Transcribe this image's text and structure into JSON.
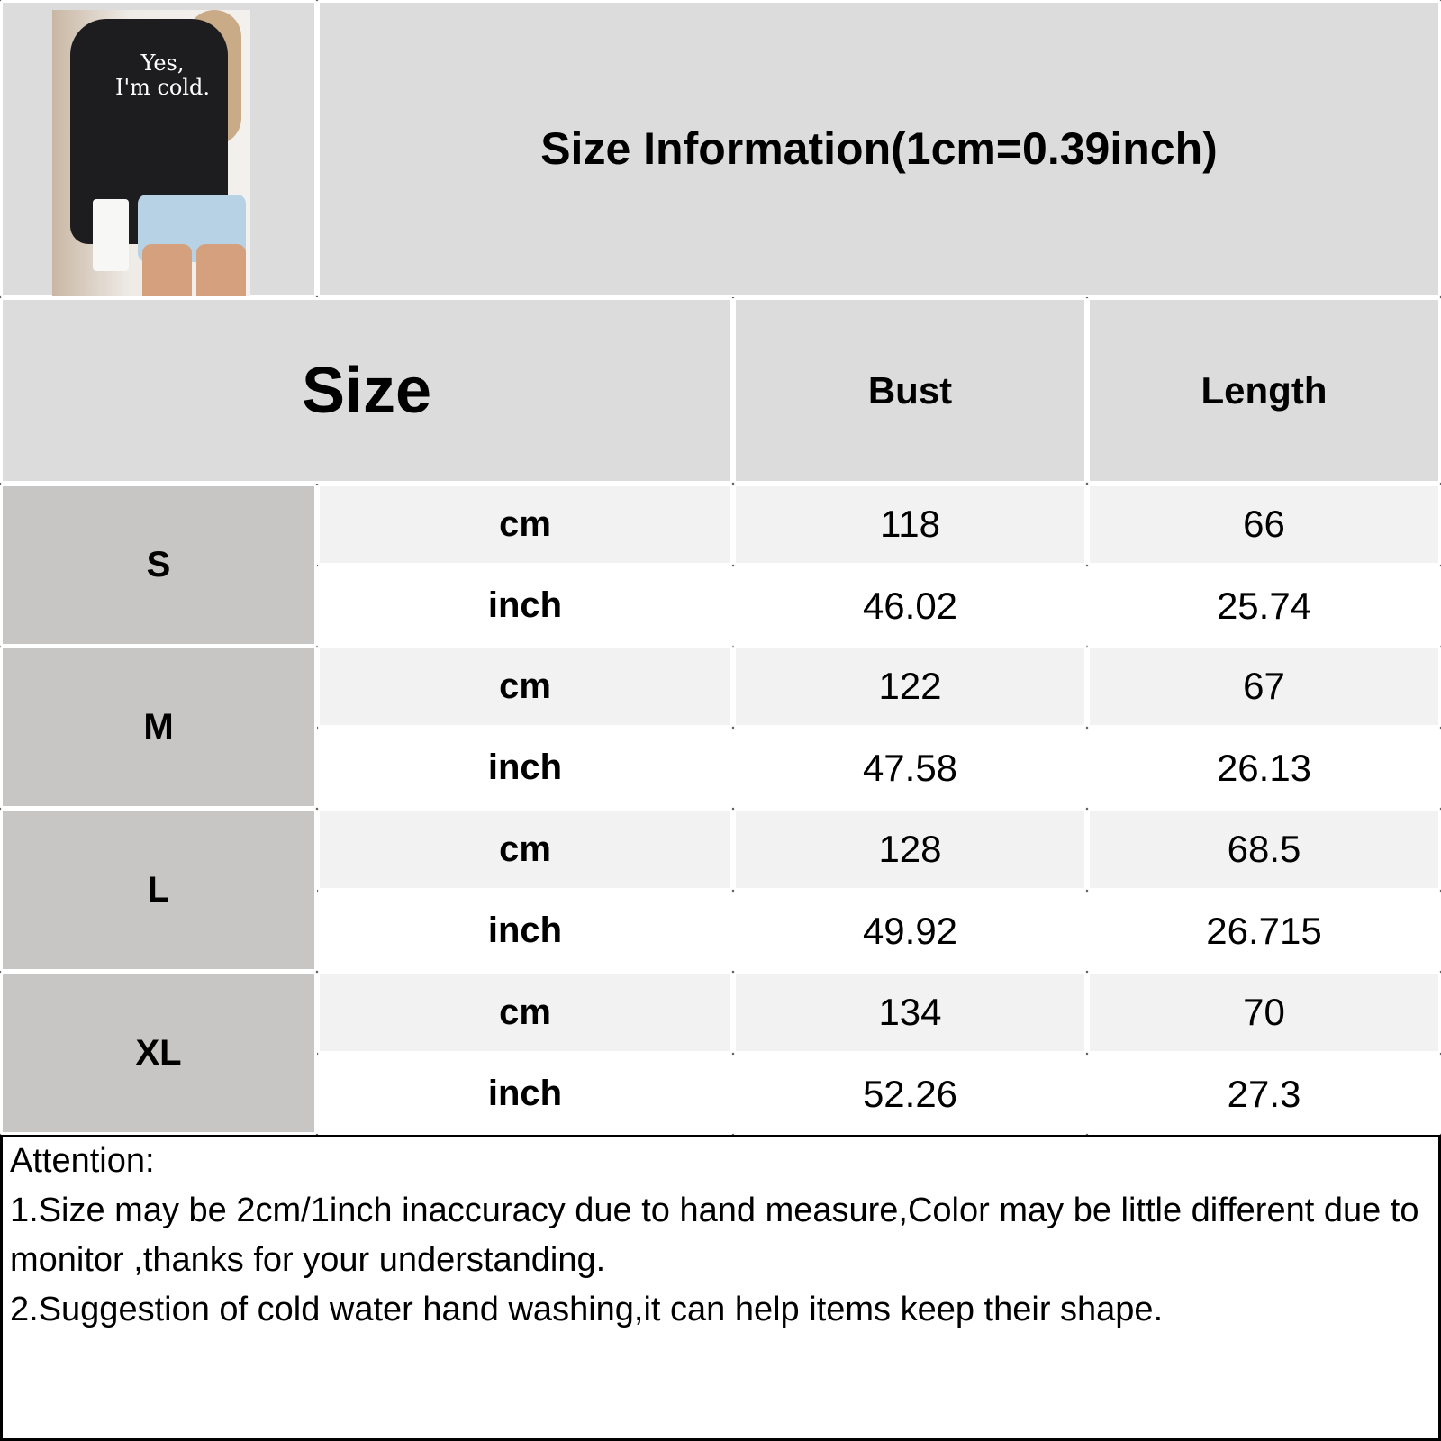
{
  "header": {
    "title": "Size Information(1cm=0.39inch)"
  },
  "product_image": {
    "print_text": [
      "Yes,",
      "I'm cold."
    ]
  },
  "table": {
    "columns": [
      "Size",
      "Bust",
      "Length"
    ],
    "rows": [
      {
        "size": "S",
        "cm": {
          "unit": "cm",
          "bust": "118",
          "length": "66"
        },
        "inch": {
          "unit": "inch",
          "bust": "46.02",
          "length": "25.74"
        }
      },
      {
        "size": "M",
        "cm": {
          "unit": "cm",
          "bust": "122",
          "length": "67"
        },
        "inch": {
          "unit": "inch",
          "bust": "47.58",
          "length": "26.13"
        }
      },
      {
        "size": "L",
        "cm": {
          "unit": "cm",
          "bust": "128",
          "length": "68.5"
        },
        "inch": {
          "unit": "inch",
          "bust": "49.92",
          "length": "26.715"
        }
      },
      {
        "size": "XL",
        "cm": {
          "unit": "cm",
          "bust": "134",
          "length": "70"
        },
        "inch": {
          "unit": "inch",
          "bust": "52.26",
          "length": "27.3"
        }
      }
    ]
  },
  "notes": {
    "heading": "Attention:",
    "lines": [
      "1.Size may be 2cm/1inch inaccuracy due to hand measure,Color may be little different due to monitor ,thanks for your understanding.",
      "2.Suggestion of cold water hand washing,it can help items keep their shape."
    ]
  }
}
